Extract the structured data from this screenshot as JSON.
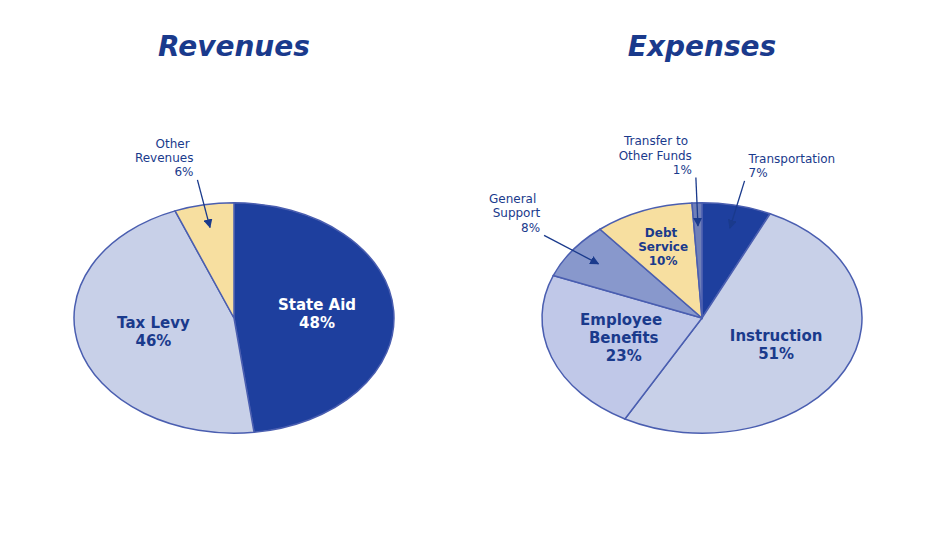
{
  "chart_data": [
    {
      "type": "pie",
      "title": "Revenues",
      "categories": [
        "State Aid",
        "Tax Levy",
        "Other Revenues"
      ],
      "values": [
        48,
        46,
        6
      ],
      "value_labels": [
        "48%",
        "46%",
        "6%"
      ],
      "colors": [
        "#1e3f9e",
        "#c8d0e8",
        "#f7dfa0"
      ],
      "data_labels": true
    },
    {
      "type": "pie",
      "title": "Expenses",
      "categories": [
        "Transportation",
        "Instruction",
        "Employee Benefits",
        "General Support",
        "Debt Service",
        "Transfer to Other Funds"
      ],
      "values": [
        7,
        51,
        23,
        8,
        10,
        1
      ],
      "value_labels": [
        "7%",
        "51%",
        "23%",
        "8%",
        "10%",
        "1%"
      ],
      "colors": [
        "#1e3f9e",
        "#c8d0e8",
        "#c0c8e8",
        "#8898cc",
        "#f7dfa0",
        "#7080b8"
      ],
      "data_labels": true
    }
  ]
}
